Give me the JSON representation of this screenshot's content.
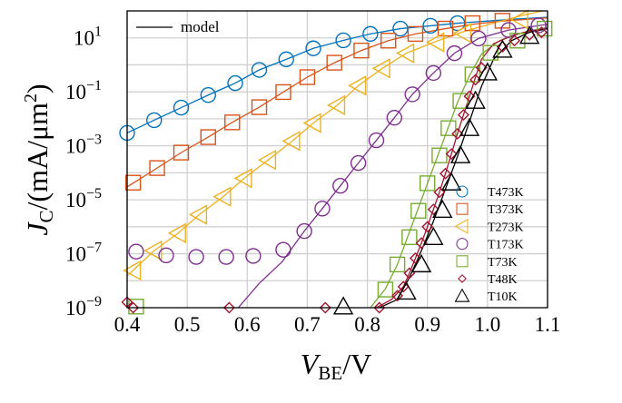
{
  "chart_data": {
    "type": "scatter",
    "xlabel": {
      "main": "V",
      "sub": "BE",
      "unit": "/V"
    },
    "ylabel": {
      "main": "J",
      "sub": "C",
      "unit": "/(mA/μm",
      "sup": "2",
      "close": ")"
    },
    "xlim": [
      0.4,
      1.1
    ],
    "ylim": [
      1e-09,
      100
    ],
    "yscale": "log",
    "grid": true,
    "x_ticks": [
      "0.4",
      "0.5",
      "0.6",
      "0.7",
      "0.8",
      "0.9",
      "1.0",
      "1.1"
    ],
    "y_ticks": [
      {
        "base": "10",
        "exp": "-9"
      },
      {
        "base": "10",
        "exp": "-7"
      },
      {
        "base": "10",
        "exp": "-5"
      },
      {
        "base": "10",
        "exp": "-3"
      },
      {
        "base": "10",
        "exp": "-1"
      },
      {
        "base": "10",
        "exp": "1"
      }
    ],
    "model_legend": "model",
    "legend_position": "bottom-right",
    "series": [
      {
        "name": "T473K",
        "color": "#0072BD",
        "marker": "circle",
        "x": [
          0.4,
          0.445,
          0.49,
          0.535,
          0.58,
          0.62,
          0.665,
          0.71,
          0.76,
          0.805,
          0.855,
          0.905,
          0.95
        ],
        "y": [
          0.003,
          0.0089,
          0.026,
          0.076,
          0.21,
          0.65,
          1.6,
          4.1,
          8.1,
          14,
          22,
          28,
          35
        ],
        "model": {
          "x": [
            0.4,
            0.445,
            0.49,
            0.535,
            0.58,
            0.62,
            0.665,
            0.71,
            0.76,
            0.805,
            0.855,
            0.905,
            0.95,
            1.0,
            1.05,
            1.1
          ],
          "y": [
            0.003,
            0.0089,
            0.026,
            0.076,
            0.21,
            0.65,
            1.6,
            4.1,
            8.1,
            14,
            22,
            28,
            35,
            42,
            50,
            58
          ]
        }
      },
      {
        "name": "T373K",
        "color": "#D95319",
        "marker": "square",
        "x": [
          0.41,
          0.45,
          0.49,
          0.535,
          0.575,
          0.62,
          0.66,
          0.7,
          0.745,
          0.79,
          0.835,
          0.88,
          0.93,
          0.975,
          1.025
        ],
        "y": [
          4.3e-05,
          0.00015,
          0.00056,
          0.0021,
          0.0074,
          0.027,
          0.098,
          0.35,
          1.2,
          3.4,
          7.9,
          14,
          22,
          35,
          43
        ],
        "model": {
          "x": [
            0.4,
            0.45,
            0.49,
            0.535,
            0.575,
            0.62,
            0.66,
            0.7,
            0.745,
            0.79,
            0.835,
            0.88,
            0.93,
            0.975,
            1.025,
            1.1
          ],
          "y": [
            3e-05,
            0.00015,
            0.00056,
            0.0021,
            0.0074,
            0.027,
            0.098,
            0.35,
            1.2,
            3.4,
            7.9,
            14,
            22,
            32,
            42,
            55
          ]
        }
      },
      {
        "name": "T273K",
        "color": "#EDB120",
        "marker": "triangle-left",
        "x": [
          0.41,
          0.445,
          0.485,
          0.52,
          0.56,
          0.595,
          0.635,
          0.675,
          0.71,
          0.75,
          0.785,
          0.825,
          0.865,
          0.915,
          0.96,
          1.055
        ],
        "y": [
          2.4e-08,
          1.3e-07,
          5.8e-07,
          2.8e-06,
          1.3e-05,
          6.3e-05,
          0.0003,
          0.0015,
          0.007,
          0.032,
          0.17,
          0.74,
          2.7,
          6.9,
          15,
          48
        ],
        "model": {
          "x": [
            0.4,
            0.445,
            0.485,
            0.52,
            0.56,
            0.595,
            0.635,
            0.675,
            0.71,
            0.75,
            0.785,
            0.825,
            0.865,
            0.915,
            0.96,
            1.01,
            1.06,
            1.1
          ],
          "y": [
            1.5e-08,
            1.3e-07,
            5.8e-07,
            2.8e-06,
            1.3e-05,
            6.3e-05,
            0.0003,
            0.0015,
            0.007,
            0.032,
            0.17,
            0.74,
            2.7,
            7.5,
            17,
            35,
            70,
            110
          ]
        }
      },
      {
        "name": "T173K",
        "color": "#7E2F8E",
        "marker": "circle",
        "x": [
          0.415,
          0.465,
          0.515,
          0.565,
          0.61,
          0.66,
          0.695,
          0.725,
          0.755,
          0.785,
          0.815,
          0.845,
          0.875,
          0.91,
          0.945,
          0.985,
          1.035,
          1.085
        ],
        "y": [
          1.2e-07,
          8.7e-08,
          7.6e-08,
          7.6e-08,
          8.3e-08,
          1.4e-07,
          6.9e-07,
          4.7e-06,
          3.3e-05,
          0.00023,
          0.0016,
          0.011,
          0.081,
          0.5,
          2.7,
          9.5,
          19.5,
          29
        ],
        "model": {
          "x": [
            0.585,
            0.62,
            0.658,
            0.695,
            0.725,
            0.755,
            0.785,
            0.815,
            0.845,
            0.875,
            0.91,
            0.945,
            0.985,
            1.035,
            1.1
          ],
          "y": [
            1e-09,
            8e-09,
            5e-08,
            6.9e-07,
            4.7e-06,
            3.3e-05,
            0.00023,
            0.0016,
            0.011,
            0.081,
            0.5,
            2.7,
            9.5,
            19.5,
            32
          ]
        }
      },
      {
        "name": "T73K",
        "color": "#77AC30",
        "marker": "square",
        "x": [
          0.415,
          0.83,
          0.85,
          0.87,
          0.885,
          0.9,
          0.92,
          0.935,
          0.955,
          0.975,
          1.005,
          1.05,
          1.095
        ],
        "y": [
          1.1e-09,
          4.7e-09,
          4e-08,
          4.1e-07,
          3.9e-06,
          4.1e-05,
          0.00044,
          0.0045,
          0.046,
          0.44,
          2.8,
          7.9,
          22
        ],
        "model": {
          "x": [
            0.805,
            0.83,
            0.85,
            0.87,
            0.89,
            0.91,
            0.93,
            0.95,
            0.97,
            0.99,
            1.02,
            1.06,
            1.1
          ],
          "y": [
            1e-09,
            5e-09,
            4e-08,
            6.3e-07,
            1e-05,
            0.00016,
            0.0025,
            0.04,
            0.4,
            2.5,
            7.9,
            16,
            25
          ]
        }
      },
      {
        "name": "T48K",
        "color": "#A2142F",
        "marker": "diamond",
        "x": [
          0.4,
          0.41,
          0.57,
          0.73,
          0.82,
          0.85,
          0.86,
          0.87,
          0.88,
          0.89,
          0.9,
          0.91,
          0.92,
          0.93,
          0.94,
          0.95,
          0.96,
          0.97,
          0.98,
          0.99,
          1.025,
          1.045,
          1.07,
          1.09
        ],
        "y": [
          1.6e-09,
          1e-09,
          1e-09,
          1e-09,
          1e-09,
          2.8e-09,
          6e-09,
          1.9e-08,
          6.8e-08,
          2.5e-07,
          1e-06,
          4.4e-06,
          1.9e-05,
          9.3e-05,
          0.0005,
          0.0028,
          0.014,
          0.068,
          0.28,
          0.78,
          4.7,
          7.9,
          13,
          16
        ],
        "model": {
          "x": [
            0.815,
            0.84,
            0.86,
            0.87,
            0.88,
            0.89,
            0.9,
            0.91,
            0.92,
            0.93,
            0.94,
            0.95,
            0.96,
            0.97,
            0.98,
            0.99,
            1.01,
            1.04,
            1.07,
            1.1
          ],
          "y": [
            1e-09,
            2e-09,
            6e-09,
            1.9e-08,
            6.8e-08,
            2.5e-07,
            1e-06,
            4.4e-06,
            1.9e-05,
            9.3e-05,
            0.0005,
            0.0028,
            0.014,
            0.068,
            0.35,
            1.6,
            6,
            12,
            18,
            22
          ]
        }
      },
      {
        "name": "T10K",
        "color": "#000000",
        "marker": "triangle-up",
        "x": [
          0.76,
          0.865,
          0.89,
          0.91,
          0.925,
          0.94,
          0.955,
          0.97,
          0.98,
          1.0,
          1.025,
          1.07
        ],
        "y": [
          1.1e-09,
          3.9e-09,
          4e-08,
          4.1e-07,
          4.2e-06,
          4.3e-05,
          0.00044,
          0.0045,
          0.046,
          0.52,
          3.6,
          11.7
        ],
        "model": {
          "x": [
            0.82,
            0.85,
            0.87,
            0.89,
            0.91,
            0.93,
            0.95,
            0.97,
            0.99,
            1.01,
            1.04,
            1.07,
            1.1
          ],
          "y": [
            1e-09,
            2e-09,
            1.3e-08,
            1.3e-07,
            1.6e-06,
            2.5e-05,
            0.0004,
            0.008,
            0.16,
            1.6,
            7.9,
            16,
            22
          ]
        }
      }
    ]
  }
}
